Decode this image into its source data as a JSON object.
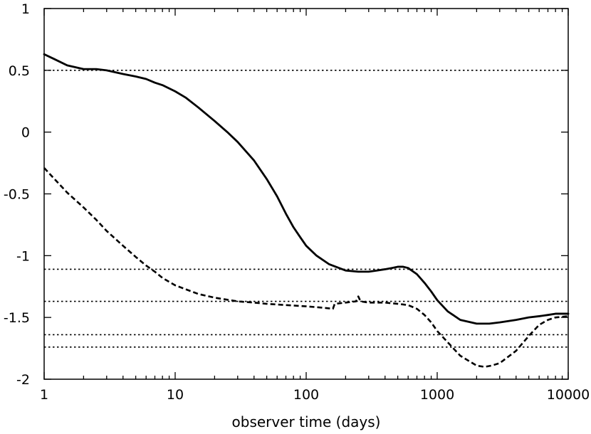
{
  "chart_data": {
    "type": "line",
    "title": "",
    "xlabel": "observer time (days)",
    "ylabel": "",
    "xscale": "log",
    "xlim": [
      1,
      10000
    ],
    "ylim": [
      -2,
      1
    ],
    "grid": false,
    "x_ticks": [
      {
        "value": 1,
        "label": "1"
      },
      {
        "value": 10,
        "label": "10"
      },
      {
        "value": 100,
        "label": "100"
      },
      {
        "value": 1000,
        "label": "1000"
      },
      {
        "value": 10000,
        "label": "10000"
      }
    ],
    "y_ticks": [
      {
        "value": 1,
        "label": "1"
      },
      {
        "value": 0.5,
        "label": "0.5"
      },
      {
        "value": 0,
        "label": "0"
      },
      {
        "value": -0.5,
        "label": "-0.5"
      },
      {
        "value": -1,
        "label": "-1"
      },
      {
        "value": -1.5,
        "label": "-1.5"
      },
      {
        "value": -2,
        "label": "-2"
      }
    ],
    "reference_lines": [
      0.5,
      -1.11,
      -1.37,
      -1.64,
      -1.74
    ],
    "series": [
      {
        "style": "solid",
        "color": "#000000",
        "points": [
          [
            1,
            0.63
          ],
          [
            1.2,
            0.59
          ],
          [
            1.5,
            0.54
          ],
          [
            2,
            0.51
          ],
          [
            2.5,
            0.51
          ],
          [
            3,
            0.5
          ],
          [
            4,
            0.47
          ],
          [
            5,
            0.45
          ],
          [
            6,
            0.43
          ],
          [
            7,
            0.4
          ],
          [
            8,
            0.38
          ],
          [
            10,
            0.33
          ],
          [
            12,
            0.28
          ],
          [
            15,
            0.2
          ],
          [
            20,
            0.09
          ],
          [
            25,
            0.0
          ],
          [
            30,
            -0.08
          ],
          [
            40,
            -0.23
          ],
          [
            50,
            -0.38
          ],
          [
            60,
            -0.52
          ],
          [
            70,
            -0.66
          ],
          [
            80,
            -0.77
          ],
          [
            90,
            -0.85
          ],
          [
            100,
            -0.92
          ],
          [
            120,
            -1.0
          ],
          [
            150,
            -1.07
          ],
          [
            200,
            -1.12
          ],
          [
            250,
            -1.13
          ],
          [
            300,
            -1.13
          ],
          [
            350,
            -1.12
          ],
          [
            400,
            -1.11
          ],
          [
            450,
            -1.1
          ],
          [
            500,
            -1.09
          ],
          [
            550,
            -1.09
          ],
          [
            600,
            -1.1
          ],
          [
            700,
            -1.15
          ],
          [
            800,
            -1.22
          ],
          [
            900,
            -1.29
          ],
          [
            1000,
            -1.36
          ],
          [
            1200,
            -1.45
          ],
          [
            1500,
            -1.52
          ],
          [
            2000,
            -1.55
          ],
          [
            2500,
            -1.55
          ],
          [
            3000,
            -1.54
          ],
          [
            4000,
            -1.52
          ],
          [
            5000,
            -1.5
          ],
          [
            6000,
            -1.49
          ],
          [
            7000,
            -1.48
          ],
          [
            8000,
            -1.47
          ],
          [
            9000,
            -1.47
          ],
          [
            10000,
            -1.47
          ]
        ]
      },
      {
        "style": "dashed",
        "color": "#000000",
        "points": [
          [
            1,
            -0.29
          ],
          [
            1.2,
            -0.38
          ],
          [
            1.5,
            -0.49
          ],
          [
            2,
            -0.61
          ],
          [
            2.5,
            -0.71
          ],
          [
            3,
            -0.8
          ],
          [
            4,
            -0.92
          ],
          [
            5,
            -1.01
          ],
          [
            6,
            -1.08
          ],
          [
            7,
            -1.13
          ],
          [
            8,
            -1.18
          ],
          [
            10,
            -1.24
          ],
          [
            15,
            -1.31
          ],
          [
            20,
            -1.34
          ],
          [
            30,
            -1.37
          ],
          [
            40,
            -1.38
          ],
          [
            50,
            -1.39
          ],
          [
            70,
            -1.4
          ],
          [
            100,
            -1.41
          ],
          [
            130,
            -1.42
          ],
          [
            160,
            -1.43
          ],
          [
            165,
            -1.39
          ],
          [
            200,
            -1.38
          ],
          [
            240,
            -1.37
          ],
          [
            250,
            -1.33
          ],
          [
            260,
            -1.37
          ],
          [
            300,
            -1.38
          ],
          [
            400,
            -1.38
          ],
          [
            500,
            -1.39
          ],
          [
            600,
            -1.4
          ],
          [
            700,
            -1.43
          ],
          [
            800,
            -1.48
          ],
          [
            900,
            -1.54
          ],
          [
            1000,
            -1.61
          ],
          [
            1200,
            -1.7
          ],
          [
            1500,
            -1.81
          ],
          [
            2000,
            -1.89
          ],
          [
            2300,
            -1.9
          ],
          [
            2600,
            -1.89
          ],
          [
            3000,
            -1.87
          ],
          [
            4000,
            -1.77
          ],
          [
            5000,
            -1.65
          ],
          [
            6000,
            -1.56
          ],
          [
            7000,
            -1.52
          ],
          [
            8000,
            -1.5
          ],
          [
            10000,
            -1.49
          ]
        ]
      }
    ]
  }
}
